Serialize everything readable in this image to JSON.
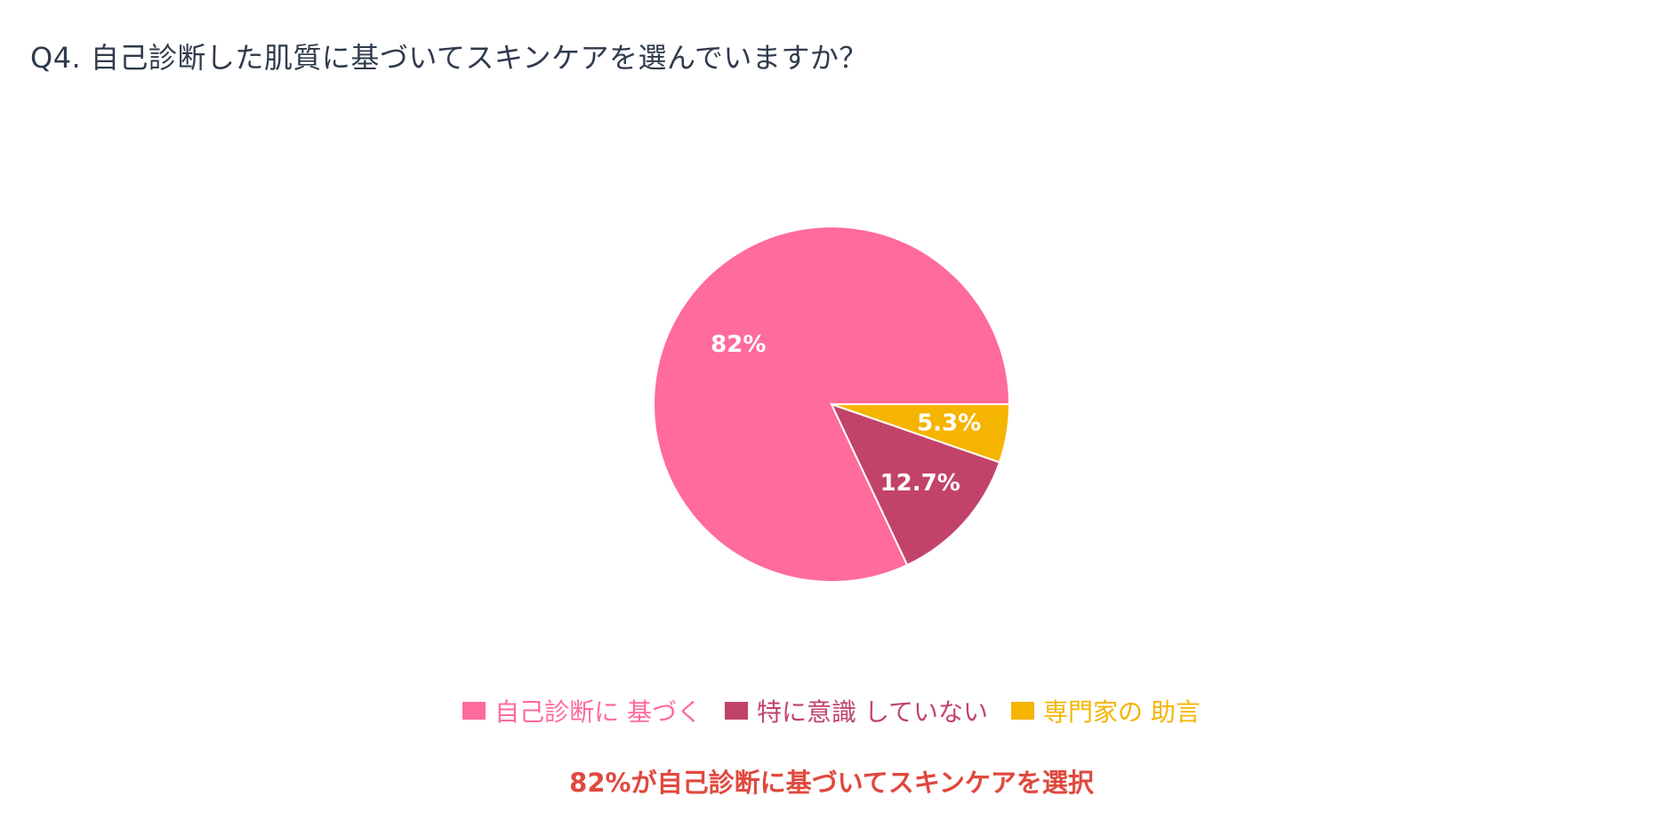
{
  "title": "Q4. 自己診断した肌質に基づいてスキンケアを選んでいますか？",
  "chart_data": {
    "type": "pie",
    "title": "Q4. 自己診断した肌質に基づいてスキンケアを選んでいますか？",
    "slices": [
      {
        "name": "自己診断に 基づく",
        "value": 82,
        "label": "82%",
        "color": "#ff6b9a"
      },
      {
        "name": "特に意識 していない",
        "value": 12.7,
        "label": "12.7%",
        "color": "#c2436a"
      },
      {
        "name": "専門家の 助言",
        "value": 5.3,
        "label": "5.3%",
        "color": "#f5b400"
      }
    ],
    "legend_position": "bottom"
  },
  "legend": [
    {
      "label": "自己診断に 基づく",
      "color": "#ff6b9a"
    },
    {
      "label": "特に意識 していない",
      "color": "#c2436a"
    },
    {
      "label": "専門家の 助言",
      "color": "#f5b400"
    }
  ],
  "caption": {
    "text": "82%が自己診断に基づいてスキンケアを選択",
    "color": "#e0483e"
  }
}
